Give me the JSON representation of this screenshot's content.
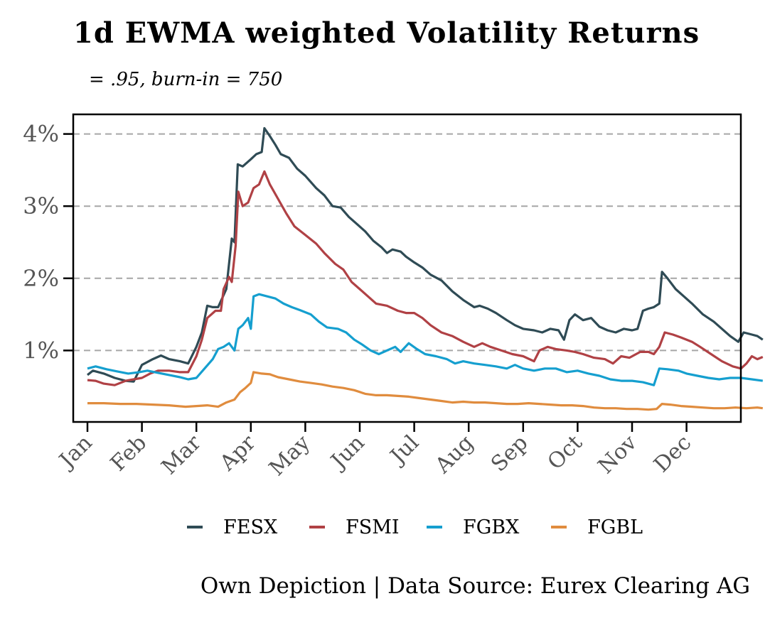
{
  "chart_data": {
    "type": "line",
    "title": "1d EWMA weighted Volatility Returns",
    "subtitle": "= .95, burn-in = 750",
    "caption": "Own Depiction | Data Source: Eurex Clearing AG",
    "xlabel": "",
    "ylabel": "",
    "x_ticks": [
      "Jan",
      "Feb",
      "Mar",
      "Apr",
      "May",
      "Jun",
      "Jul",
      "Aug",
      "Sep",
      "Oct",
      "Nov",
      "Dec"
    ],
    "y_ticks": [
      "1%",
      "2%",
      "3%",
      "4%"
    ],
    "y_tick_values": [
      1,
      2,
      3,
      4
    ],
    "ylim": [
      0,
      4.3
    ],
    "xlim_month": [
      0,
      12
    ],
    "grid": "horizontal dashed",
    "legend_position": "bottom",
    "series": [
      {
        "name": "FESX",
        "color": "#2f4b55",
        "points": [
          [
            0,
            0.66
          ],
          [
            0.1,
            0.72
          ],
          [
            0.3,
            0.68
          ],
          [
            0.5,
            0.62
          ],
          [
            0.7,
            0.58
          ],
          [
            0.85,
            0.57
          ],
          [
            1.0,
            0.8
          ],
          [
            1.2,
            0.88
          ],
          [
            1.35,
            0.93
          ],
          [
            1.5,
            0.88
          ],
          [
            1.7,
            0.85
          ],
          [
            1.85,
            0.82
          ],
          [
            2.0,
            1.05
          ],
          [
            2.1,
            1.25
          ],
          [
            2.2,
            1.62
          ],
          [
            2.3,
            1.6
          ],
          [
            2.4,
            1.6
          ],
          [
            2.55,
            1.85
          ],
          [
            2.65,
            2.55
          ],
          [
            2.7,
            2.5
          ],
          [
            2.76,
            3.58
          ],
          [
            2.85,
            3.55
          ],
          [
            3.0,
            3.65
          ],
          [
            3.1,
            3.72
          ],
          [
            3.2,
            3.75
          ],
          [
            3.25,
            4.08
          ],
          [
            3.35,
            3.97
          ],
          [
            3.45,
            3.85
          ],
          [
            3.55,
            3.72
          ],
          [
            3.7,
            3.67
          ],
          [
            3.85,
            3.52
          ],
          [
            4.0,
            3.42
          ],
          [
            4.2,
            3.25
          ],
          [
            4.35,
            3.15
          ],
          [
            4.5,
            3.0
          ],
          [
            4.65,
            2.98
          ],
          [
            4.8,
            2.85
          ],
          [
            4.95,
            2.75
          ],
          [
            5.1,
            2.65
          ],
          [
            5.25,
            2.52
          ],
          [
            5.4,
            2.43
          ],
          [
            5.5,
            2.35
          ],
          [
            5.6,
            2.4
          ],
          [
            5.75,
            2.37
          ],
          [
            5.85,
            2.3
          ],
          [
            6.0,
            2.22
          ],
          [
            6.15,
            2.15
          ],
          [
            6.3,
            2.05
          ],
          [
            6.5,
            1.97
          ],
          [
            6.7,
            1.82
          ],
          [
            6.9,
            1.7
          ],
          [
            7.1,
            1.6
          ],
          [
            7.2,
            1.62
          ],
          [
            7.35,
            1.58
          ],
          [
            7.5,
            1.52
          ],
          [
            7.7,
            1.42
          ],
          [
            7.85,
            1.35
          ],
          [
            8.0,
            1.3
          ],
          [
            8.2,
            1.28
          ],
          [
            8.35,
            1.25
          ],
          [
            8.5,
            1.3
          ],
          [
            8.65,
            1.28
          ],
          [
            8.75,
            1.15
          ],
          [
            8.85,
            1.42
          ],
          [
            8.95,
            1.5
          ],
          [
            9.1,
            1.42
          ],
          [
            9.25,
            1.45
          ],
          [
            9.4,
            1.33
          ],
          [
            9.55,
            1.28
          ],
          [
            9.7,
            1.25
          ],
          [
            9.85,
            1.3
          ],
          [
            10.0,
            1.28
          ],
          [
            10.1,
            1.3
          ],
          [
            10.2,
            1.55
          ],
          [
            10.3,
            1.58
          ],
          [
            10.4,
            1.6
          ],
          [
            10.5,
            1.65
          ],
          [
            10.55,
            2.09
          ],
          [
            10.65,
            2.0
          ],
          [
            10.8,
            1.85
          ],
          [
            10.95,
            1.75
          ],
          [
            11.1,
            1.65
          ],
          [
            11.3,
            1.5
          ],
          [
            11.5,
            1.4
          ],
          [
            11.65,
            1.3
          ],
          [
            11.8,
            1.2
          ],
          [
            11.95,
            1.12
          ],
          [
            12.05,
            1.25
          ],
          [
            12.2,
            1.22
          ],
          [
            12.3,
            1.2
          ],
          [
            12.4,
            1.15
          ]
        ]
      },
      {
        "name": "FSMI",
        "color": "#b04145",
        "points": [
          [
            0,
            0.59
          ],
          [
            0.15,
            0.58
          ],
          [
            0.3,
            0.54
          ],
          [
            0.5,
            0.52
          ],
          [
            0.7,
            0.58
          ],
          [
            0.85,
            0.6
          ],
          [
            1.0,
            0.62
          ],
          [
            1.15,
            0.68
          ],
          [
            1.3,
            0.72
          ],
          [
            1.5,
            0.72
          ],
          [
            1.7,
            0.7
          ],
          [
            1.85,
            0.7
          ],
          [
            2.0,
            0.92
          ],
          [
            2.1,
            1.15
          ],
          [
            2.2,
            1.45
          ],
          [
            2.35,
            1.55
          ],
          [
            2.45,
            1.55
          ],
          [
            2.5,
            1.85
          ],
          [
            2.6,
            2.02
          ],
          [
            2.65,
            1.95
          ],
          [
            2.72,
            2.45
          ],
          [
            2.77,
            3.2
          ],
          [
            2.85,
            3.0
          ],
          [
            2.95,
            3.05
          ],
          [
            3.05,
            3.25
          ],
          [
            3.15,
            3.3
          ],
          [
            3.25,
            3.48
          ],
          [
            3.35,
            3.3
          ],
          [
            3.5,
            3.1
          ],
          [
            3.65,
            2.9
          ],
          [
            3.8,
            2.72
          ],
          [
            4.0,
            2.6
          ],
          [
            4.2,
            2.48
          ],
          [
            4.35,
            2.35
          ],
          [
            4.55,
            2.2
          ],
          [
            4.7,
            2.12
          ],
          [
            4.85,
            1.95
          ],
          [
            5.0,
            1.85
          ],
          [
            5.15,
            1.75
          ],
          [
            5.3,
            1.65
          ],
          [
            5.5,
            1.62
          ],
          [
            5.7,
            1.55
          ],
          [
            5.85,
            1.52
          ],
          [
            6.0,
            1.52
          ],
          [
            6.15,
            1.45
          ],
          [
            6.3,
            1.35
          ],
          [
            6.5,
            1.25
          ],
          [
            6.7,
            1.2
          ],
          [
            6.9,
            1.12
          ],
          [
            7.1,
            1.05
          ],
          [
            7.25,
            1.1
          ],
          [
            7.4,
            1.05
          ],
          [
            7.6,
            1.0
          ],
          [
            7.8,
            0.95
          ],
          [
            8.0,
            0.92
          ],
          [
            8.2,
            0.85
          ],
          [
            8.3,
            1.0
          ],
          [
            8.45,
            1.05
          ],
          [
            8.6,
            1.02
          ],
          [
            8.8,
            1.0
          ],
          [
            8.95,
            0.98
          ],
          [
            9.1,
            0.95
          ],
          [
            9.3,
            0.9
          ],
          [
            9.5,
            0.88
          ],
          [
            9.65,
            0.82
          ],
          [
            9.8,
            0.92
          ],
          [
            9.95,
            0.9
          ],
          [
            10.15,
            0.98
          ],
          [
            10.3,
            0.98
          ],
          [
            10.4,
            0.95
          ],
          [
            10.5,
            1.05
          ],
          [
            10.6,
            1.25
          ],
          [
            10.75,
            1.22
          ],
          [
            10.9,
            1.18
          ],
          [
            11.1,
            1.12
          ],
          [
            11.25,
            1.05
          ],
          [
            11.45,
            0.95
          ],
          [
            11.65,
            0.85
          ],
          [
            11.85,
            0.78
          ],
          [
            12.0,
            0.75
          ],
          [
            12.1,
            0.82
          ],
          [
            12.2,
            0.92
          ],
          [
            12.3,
            0.88
          ],
          [
            12.4,
            0.91
          ]
        ]
      },
      {
        "name": "FGBX",
        "color": "#159fcf",
        "points": [
          [
            0,
            0.75
          ],
          [
            0.15,
            0.78
          ],
          [
            0.35,
            0.74
          ],
          [
            0.55,
            0.71
          ],
          [
            0.75,
            0.68
          ],
          [
            0.95,
            0.7
          ],
          [
            1.1,
            0.72
          ],
          [
            1.3,
            0.69
          ],
          [
            1.5,
            0.66
          ],
          [
            1.7,
            0.63
          ],
          [
            1.85,
            0.6
          ],
          [
            2.0,
            0.62
          ],
          [
            2.15,
            0.75
          ],
          [
            2.3,
            0.88
          ],
          [
            2.4,
            1.02
          ],
          [
            2.5,
            1.05
          ],
          [
            2.6,
            1.1
          ],
          [
            2.7,
            1.0
          ],
          [
            2.77,
            1.3
          ],
          [
            2.85,
            1.35
          ],
          [
            2.95,
            1.45
          ],
          [
            3.0,
            1.3
          ],
          [
            3.05,
            1.75
          ],
          [
            3.15,
            1.78
          ],
          [
            3.3,
            1.75
          ],
          [
            3.45,
            1.72
          ],
          [
            3.6,
            1.65
          ],
          [
            3.75,
            1.6
          ],
          [
            3.9,
            1.56
          ],
          [
            4.1,
            1.5
          ],
          [
            4.25,
            1.4
          ],
          [
            4.4,
            1.32
          ],
          [
            4.6,
            1.3
          ],
          [
            4.75,
            1.25
          ],
          [
            4.9,
            1.15
          ],
          [
            5.05,
            1.08
          ],
          [
            5.2,
            1.0
          ],
          [
            5.35,
            0.95
          ],
          [
            5.5,
            1.0
          ],
          [
            5.65,
            1.05
          ],
          [
            5.75,
            0.98
          ],
          [
            5.9,
            1.1
          ],
          [
            6.05,
            1.02
          ],
          [
            6.2,
            0.95
          ],
          [
            6.4,
            0.92
          ],
          [
            6.6,
            0.88
          ],
          [
            6.75,
            0.82
          ],
          [
            6.9,
            0.85
          ],
          [
            7.1,
            0.82
          ],
          [
            7.3,
            0.8
          ],
          [
            7.5,
            0.78
          ],
          [
            7.7,
            0.75
          ],
          [
            7.85,
            0.8
          ],
          [
            8.0,
            0.75
          ],
          [
            8.2,
            0.72
          ],
          [
            8.4,
            0.75
          ],
          [
            8.6,
            0.75
          ],
          [
            8.8,
            0.7
          ],
          [
            9.0,
            0.72
          ],
          [
            9.2,
            0.68
          ],
          [
            9.4,
            0.65
          ],
          [
            9.6,
            0.6
          ],
          [
            9.8,
            0.58
          ],
          [
            10.0,
            0.58
          ],
          [
            10.2,
            0.56
          ],
          [
            10.4,
            0.52
          ],
          [
            10.5,
            0.75
          ],
          [
            10.65,
            0.74
          ],
          [
            10.85,
            0.72
          ],
          [
            11.0,
            0.68
          ],
          [
            11.2,
            0.65
          ],
          [
            11.4,
            0.62
          ],
          [
            11.6,
            0.6
          ],
          [
            11.8,
            0.62
          ],
          [
            12.0,
            0.62
          ],
          [
            12.2,
            0.6
          ],
          [
            12.4,
            0.58
          ]
        ]
      },
      {
        "name": "FGBL",
        "color": "#e08c3e",
        "points": [
          [
            0,
            0.27
          ],
          [
            0.3,
            0.27
          ],
          [
            0.6,
            0.26
          ],
          [
            0.9,
            0.26
          ],
          [
            1.2,
            0.25
          ],
          [
            1.5,
            0.24
          ],
          [
            1.8,
            0.22
          ],
          [
            2.0,
            0.23
          ],
          [
            2.2,
            0.24
          ],
          [
            2.4,
            0.22
          ],
          [
            2.55,
            0.28
          ],
          [
            2.7,
            0.32
          ],
          [
            2.8,
            0.42
          ],
          [
            2.9,
            0.48
          ],
          [
            3.0,
            0.55
          ],
          [
            3.05,
            0.7
          ],
          [
            3.2,
            0.68
          ],
          [
            3.35,
            0.67
          ],
          [
            3.5,
            0.63
          ],
          [
            3.7,
            0.6
          ],
          [
            3.9,
            0.57
          ],
          [
            4.1,
            0.55
          ],
          [
            4.3,
            0.53
          ],
          [
            4.5,
            0.5
          ],
          [
            4.7,
            0.48
          ],
          [
            4.9,
            0.45
          ],
          [
            5.1,
            0.4
          ],
          [
            5.3,
            0.38
          ],
          [
            5.5,
            0.38
          ],
          [
            5.7,
            0.37
          ],
          [
            5.9,
            0.36
          ],
          [
            6.1,
            0.34
          ],
          [
            6.3,
            0.32
          ],
          [
            6.5,
            0.3
          ],
          [
            6.7,
            0.28
          ],
          [
            6.9,
            0.29
          ],
          [
            7.1,
            0.28
          ],
          [
            7.3,
            0.28
          ],
          [
            7.5,
            0.27
          ],
          [
            7.7,
            0.26
          ],
          [
            7.9,
            0.26
          ],
          [
            8.1,
            0.27
          ],
          [
            8.3,
            0.26
          ],
          [
            8.5,
            0.25
          ],
          [
            8.7,
            0.24
          ],
          [
            8.9,
            0.24
          ],
          [
            9.1,
            0.23
          ],
          [
            9.3,
            0.21
          ],
          [
            9.5,
            0.2
          ],
          [
            9.7,
            0.2
          ],
          [
            9.9,
            0.19
          ],
          [
            10.1,
            0.19
          ],
          [
            10.3,
            0.18
          ],
          [
            10.45,
            0.19
          ],
          [
            10.55,
            0.26
          ],
          [
            10.7,
            0.25
          ],
          [
            10.9,
            0.23
          ],
          [
            11.1,
            0.22
          ],
          [
            11.3,
            0.21
          ],
          [
            11.5,
            0.2
          ],
          [
            11.7,
            0.2
          ],
          [
            11.9,
            0.21
          ],
          [
            12.1,
            0.2
          ],
          [
            12.3,
            0.21
          ],
          [
            12.4,
            0.2
          ]
        ]
      }
    ]
  }
}
